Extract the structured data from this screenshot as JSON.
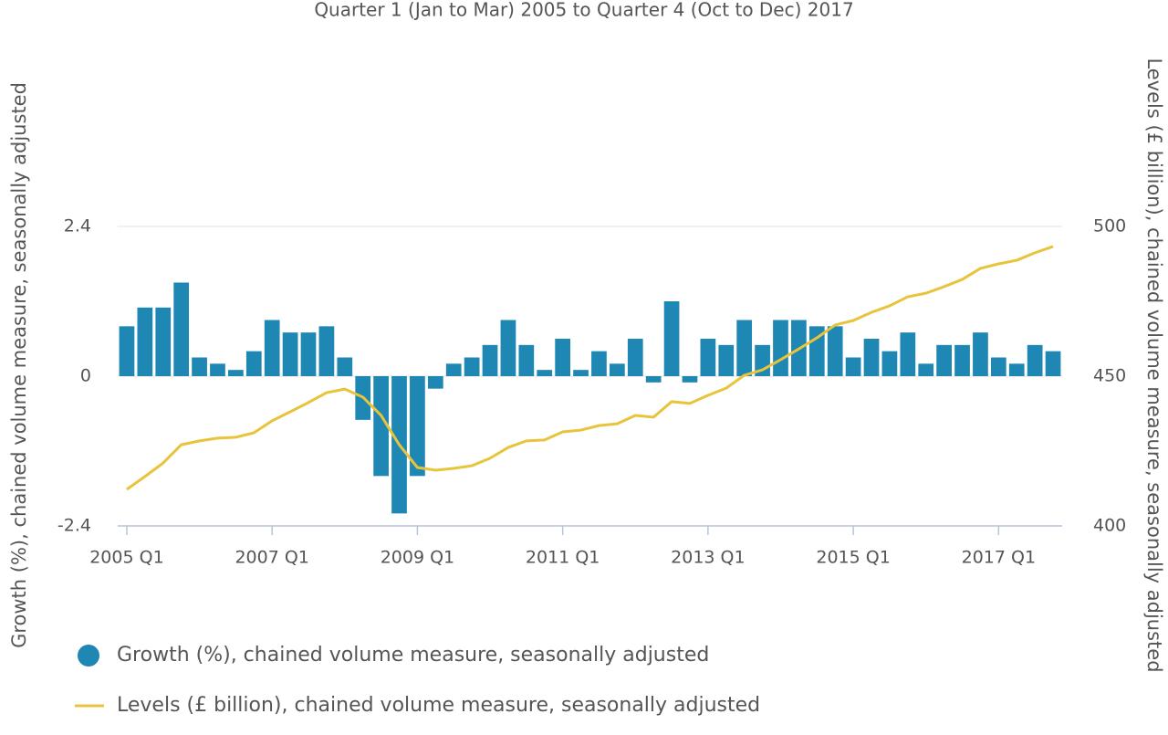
{
  "chart_data": {
    "type": "bar+line",
    "title": "Quarter 1 (Jan to Mar) 2005 to Quarter 4 (Oct to Dec) 2017",
    "y_label": "Growth (%), chained volume measure, seasonally adjusted",
    "y2_label": "Levels (£ billion), chained volume measure, seasonally adjusted",
    "categories": [
      "2005 Q1",
      null,
      null,
      null,
      null,
      null,
      null,
      null,
      "2007 Q1",
      null,
      null,
      null,
      null,
      null,
      null,
      null,
      "2009 Q1",
      null,
      null,
      null,
      null,
      null,
      null,
      null,
      "2011 Q1",
      null,
      null,
      null,
      null,
      null,
      null,
      null,
      "2013 Q1",
      null,
      null,
      null,
      null,
      null,
      null,
      null,
      "2015 Q1",
      null,
      null,
      null,
      null,
      null,
      null,
      null,
      "2017 Q1",
      null,
      null,
      null
    ],
    "series": [
      {
        "name": "Growth (%), chained volume measure, seasonally adjusted",
        "type": "bar",
        "color": "#1f87b3",
        "values": [
          0.8,
          1.1,
          1.1,
          1.5,
          0.3,
          0.2,
          0.1,
          0.4,
          0.9,
          0.7,
          0.7,
          0.8,
          0.3,
          -0.7,
          -1.6,
          -2.2,
          -1.6,
          -0.2,
          0.2,
          0.3,
          0.5,
          0.9,
          0.5,
          0.1,
          0.6,
          0.1,
          0.4,
          0.2,
          0.6,
          -0.1,
          1.2,
          -0.1,
          0.6,
          0.5,
          0.9,
          0.5,
          0.9,
          0.9,
          0.8,
          0.8,
          0.3,
          0.6,
          0.4,
          0.7,
          0.2,
          0.5,
          0.5,
          0.7,
          0.3,
          0.2,
          0.5,
          0.4
        ]
      },
      {
        "name": "Levels (£ billion), chained volume measure, seasonally adjusted",
        "type": "line",
        "axis": "y2",
        "color": "#e8c43c",
        "values": [
          412.2,
          416.5,
          421,
          427.1,
          428.4,
          429.3,
          429.6,
          431.1,
          435.1,
          438.1,
          441.2,
          444.5,
          445.7,
          443,
          436.9,
          427.1,
          419.5,
          418.6,
          419.2,
          420.1,
          422.6,
          426.2,
          428.4,
          428.7,
          431.4,
          432,
          433.5,
          434.1,
          436.9,
          436.3,
          441.5,
          440.9,
          443.6,
          446,
          450.3,
          452.1,
          455.5,
          459.1,
          462.8,
          467.1,
          468.6,
          471.3,
          473.5,
          476.5,
          477.7,
          479.9,
          482.3,
          486,
          487.5,
          488.7,
          491.2,
          493.3
        ]
      }
    ],
    "ylim": [
      -2.4,
      2.4
    ],
    "yticks": [
      -2.4,
      0,
      2.4
    ],
    "y2lim": [
      400,
      500
    ],
    "y2ticks": [
      400,
      450,
      500
    ],
    "grid": true
  }
}
